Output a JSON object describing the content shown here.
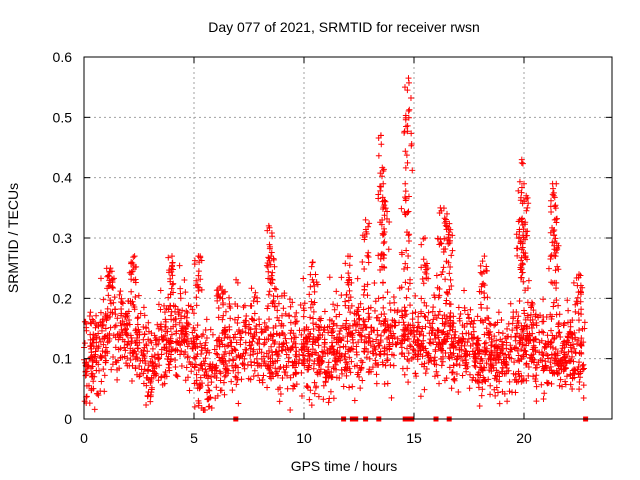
{
  "chart_data": {
    "type": "scatter",
    "title": "Day 077 of 2021, SRMTID for receiver rwsn",
    "xlabel": "GPS time / hours",
    "ylabel": "SRMTID / TECUs",
    "xlim": [
      0,
      24
    ],
    "ylim": [
      0,
      0.6
    ],
    "x_ticks": [
      0,
      5,
      10,
      15,
      20
    ],
    "x_tick_labels": [
      "0",
      "5",
      "10",
      "15",
      "20"
    ],
    "y_ticks": [
      0,
      0.1,
      0.2,
      0.3,
      0.4,
      0.5,
      0.6
    ],
    "y_tick_labels": [
      "0",
      "0.1",
      "0.2",
      "0.3",
      "0.4",
      "0.5",
      "0.6"
    ],
    "grid": true,
    "marker": "+",
    "series_color": "#ff0000",
    "series": [
      {
        "name": "rwsn",
        "base_level": [
          [
            0.0,
            0.1
          ],
          [
            0.5,
            0.1
          ],
          [
            1.0,
            0.14
          ],
          [
            1.5,
            0.15
          ],
          [
            2.0,
            0.14
          ],
          [
            2.5,
            0.12
          ],
          [
            3.0,
            0.08
          ],
          [
            3.5,
            0.12
          ],
          [
            4.0,
            0.14
          ],
          [
            4.5,
            0.13
          ],
          [
            5.0,
            0.11
          ],
          [
            5.5,
            0.07
          ],
          [
            6.0,
            0.09
          ],
          [
            6.5,
            0.12
          ],
          [
            7.0,
            0.11
          ],
          [
            7.5,
            0.13
          ],
          [
            8.0,
            0.12
          ],
          [
            8.5,
            0.12
          ],
          [
            9.0,
            0.12
          ],
          [
            9.5,
            0.11
          ],
          [
            10.0,
            0.11
          ],
          [
            10.5,
            0.11
          ],
          [
            11.0,
            0.1
          ],
          [
            11.5,
            0.12
          ],
          [
            12.0,
            0.12
          ],
          [
            12.5,
            0.14
          ],
          [
            13.0,
            0.12
          ],
          [
            13.5,
            0.13
          ],
          [
            14.0,
            0.14
          ],
          [
            14.5,
            0.13
          ],
          [
            15.0,
            0.14
          ],
          [
            15.5,
            0.13
          ],
          [
            16.0,
            0.13
          ],
          [
            16.5,
            0.14
          ],
          [
            17.0,
            0.12
          ],
          [
            17.5,
            0.12
          ],
          [
            18.0,
            0.11
          ],
          [
            18.5,
            0.1
          ],
          [
            19.0,
            0.09
          ],
          [
            19.5,
            0.11
          ],
          [
            20.0,
            0.13
          ],
          [
            20.5,
            0.11
          ],
          [
            21.0,
            0.1
          ],
          [
            21.5,
            0.1
          ],
          [
            22.0,
            0.11
          ],
          [
            22.5,
            0.11
          ],
          [
            22.8,
            0.12
          ]
        ],
        "bursts": [
          [
            1.2,
            0.25
          ],
          [
            2.3,
            0.27
          ],
          [
            4.0,
            0.27
          ],
          [
            5.2,
            0.27
          ],
          [
            6.2,
            0.22
          ],
          [
            8.4,
            0.32
          ],
          [
            8.5,
            0.27
          ],
          [
            10.4,
            0.26
          ],
          [
            12.0,
            0.27
          ],
          [
            12.8,
            0.33
          ],
          [
            13.5,
            0.47
          ],
          [
            13.6,
            0.39
          ],
          [
            13.7,
            0.36
          ],
          [
            14.6,
            0.39
          ],
          [
            14.75,
            0.565
          ],
          [
            14.7,
            0.545
          ],
          [
            15.5,
            0.3
          ],
          [
            16.2,
            0.35
          ],
          [
            16.5,
            0.34
          ],
          [
            16.6,
            0.31
          ],
          [
            18.2,
            0.27
          ],
          [
            19.8,
            0.33
          ],
          [
            19.9,
            0.43
          ],
          [
            20.0,
            0.39
          ],
          [
            20.1,
            0.37
          ],
          [
            21.3,
            0.39
          ],
          [
            21.35,
            0.37
          ],
          [
            21.4,
            0.33
          ],
          [
            22.5,
            0.24
          ]
        ],
        "zero_markers": [
          6.9,
          11.8,
          12.2,
          12.35,
          12.8,
          13.4,
          14.6,
          14.7,
          14.8,
          14.9,
          16.0,
          16.6,
          22.8
        ]
      }
    ]
  }
}
